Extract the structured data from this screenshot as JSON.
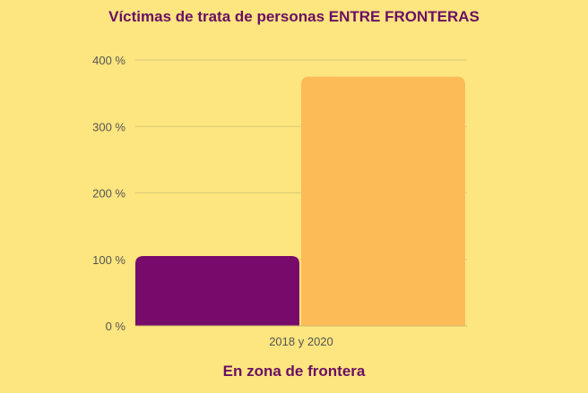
{
  "chart_data": {
    "type": "bar",
    "title": "Víctimas de trata de personas ENTRE FRONTERAS",
    "xlabel": "En zona de frontera",
    "ylabel": "",
    "categories": [
      "2018 y 2020"
    ],
    "series": [
      {
        "values": [
          105
        ],
        "color": "#770a6b"
      },
      {
        "values": [
          375
        ],
        "color": "#fdbb58"
      }
    ],
    "ylim": [
      0,
      400
    ],
    "yticks": [
      0,
      100,
      200,
      300,
      400
    ],
    "ytick_labels": [
      "0 %",
      "100 %",
      "200 %",
      "300 %",
      "400 %"
    ],
    "grid": true,
    "legend": "none"
  }
}
